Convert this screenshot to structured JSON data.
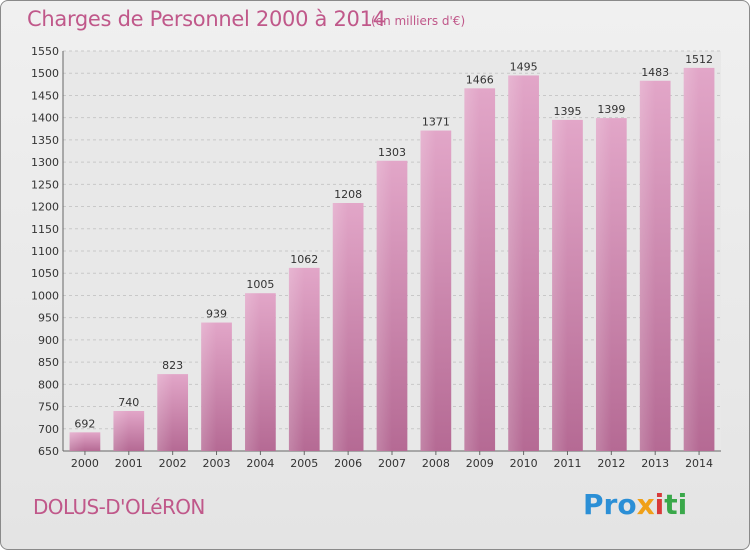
{
  "chart_data": {
    "type": "bar",
    "title": "Charges de Personnel 2000 à 2014",
    "subtitle": "(en milliers d'€)",
    "categories": [
      "2000",
      "2001",
      "2002",
      "2003",
      "2004",
      "2005",
      "2006",
      "2007",
      "2008",
      "2009",
      "2010",
      "2011",
      "2012",
      "2013",
      "2014"
    ],
    "values": [
      692,
      740,
      823,
      939,
      1005,
      1062,
      1208,
      1303,
      1371,
      1466,
      1495,
      1395,
      1399,
      1483,
      1512
    ],
    "ylim": [
      650,
      1550
    ],
    "yticks": [
      650,
      700,
      750,
      800,
      850,
      900,
      950,
      1000,
      1050,
      1100,
      1150,
      1200,
      1250,
      1300,
      1350,
      1400,
      1450,
      1500,
      1550
    ],
    "grid": true,
    "colors": {
      "bar": "#d88ab4",
      "title": "#c0588a"
    }
  },
  "footer": {
    "commune": "DOLUS-D'OLéRON",
    "logo": {
      "p1": "Pro",
      "p2": "x",
      "p3": "i",
      "p4": "ti"
    }
  }
}
